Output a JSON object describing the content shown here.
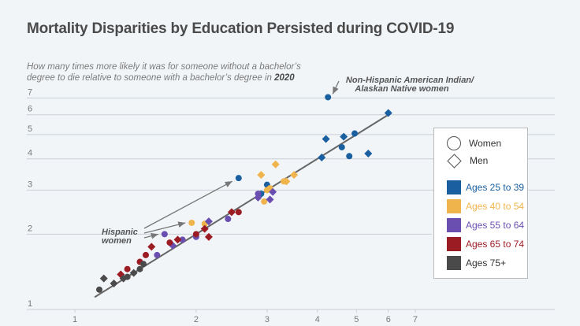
{
  "chart_data": {
    "type": "scatter",
    "title": "Mortality Disparities by Education Persisted during COVID-19",
    "subtitle_text": "How many times more likely it was for someone without a bachelor’s degree to die relative to someone with a bachelor’s degree in ",
    "subtitle_bold": "2020",
    "xlabel": "",
    "ylabel": "",
    "x_scale": "log",
    "y_scale": "log",
    "xlim": [
      1,
      7.5
    ],
    "ylim": [
      1,
      7
    ],
    "x_ticks": [
      "1",
      "2",
      "3",
      "4",
      "5",
      "6",
      "7"
    ],
    "y_ticks": [
      "1",
      "2",
      "3",
      "4",
      "5",
      "6",
      "7"
    ],
    "grid": "horizontal",
    "legend_position": "right",
    "legend": {
      "shapes": [
        {
          "shape": "circle",
          "label": "Women"
        },
        {
          "shape": "diamond",
          "label": "Men"
        }
      ],
      "groups": [
        {
          "key": "a25",
          "label": "Ages 25 to 39",
          "color": "#1a5fa0"
        },
        {
          "key": "a40",
          "label": "Ages 40 to 54",
          "color": "#f0b44c"
        },
        {
          "key": "a55",
          "label": "Ages 55 to 64",
          "color": "#6a4fb0"
        },
        {
          "key": "a65",
          "label": "Ages 65 to 74",
          "color": "#9c1c24"
        },
        {
          "key": "a75",
          "label": "Ages 75+",
          "color": "#4a4a4a"
        }
      ]
    },
    "trend_line": {
      "from": [
        1.12,
        1.12
      ],
      "to": [
        6.0,
        6.0
      ]
    },
    "annotations": [
      {
        "text_lines": [
          "Non-Hispanic American Indian/",
          "Alaskan Native women"
        ],
        "points_to": [
          4.25,
          7.05
        ]
      },
      {
        "text_lines": [
          "Hispanic",
          "women"
        ],
        "points_to": [
          [
            2.55,
            3.35
          ],
          [
            1.95,
            2.22
          ],
          [
            1.67,
            2.0
          ]
        ]
      }
    ],
    "series": [
      {
        "group": "a25",
        "shape": "circle",
        "points": [
          [
            4.25,
            7.05
          ],
          [
            2.55,
            3.35
          ],
          [
            2.9,
            2.9
          ],
          [
            3.0,
            3.15
          ],
          [
            4.6,
            4.45
          ],
          [
            4.95,
            5.05
          ],
          [
            4.8,
            4.1
          ]
        ]
      },
      {
        "group": "a25",
        "shape": "diamond",
        "points": [
          [
            6.0,
            6.1
          ],
          [
            4.2,
            4.8
          ],
          [
            4.65,
            4.9
          ],
          [
            4.1,
            4.05
          ],
          [
            5.35,
            4.2
          ]
        ]
      },
      {
        "group": "a40",
        "shape": "circle",
        "points": [
          [
            1.95,
            2.22
          ],
          [
            2.1,
            2.2
          ],
          [
            3.0,
            3.0
          ],
          [
            3.3,
            3.25
          ],
          [
            2.95,
            2.7
          ],
          [
            3.05,
            3.05
          ]
        ]
      },
      {
        "group": "a40",
        "shape": "diamond",
        "points": [
          [
            2.9,
            3.45
          ],
          [
            3.15,
            3.8
          ],
          [
            3.5,
            3.45
          ],
          [
            3.35,
            3.25
          ]
        ]
      },
      {
        "group": "a55",
        "shape": "circle",
        "points": [
          [
            1.67,
            2.0
          ],
          [
            1.6,
            1.65
          ],
          [
            1.85,
            1.9
          ],
          [
            2.0,
            1.95
          ],
          [
            2.4,
            2.3
          ],
          [
            2.85,
            2.9
          ]
        ]
      },
      {
        "group": "a55",
        "shape": "diamond",
        "points": [
          [
            1.75,
            1.8
          ],
          [
            2.15,
            2.25
          ],
          [
            2.85,
            2.8
          ],
          [
            3.05,
            2.75
          ],
          [
            3.1,
            2.95
          ]
        ]
      },
      {
        "group": "a65",
        "shape": "circle",
        "points": [
          [
            1.5,
            1.65
          ],
          [
            1.35,
            1.45
          ],
          [
            1.45,
            1.55
          ],
          [
            1.72,
            1.85
          ],
          [
            2.0,
            2.0
          ],
          [
            2.55,
            2.45
          ]
        ]
      },
      {
        "group": "a65",
        "shape": "diamond",
        "points": [
          [
            1.3,
            1.38
          ],
          [
            1.55,
            1.78
          ],
          [
            1.8,
            1.9
          ],
          [
            2.1,
            2.1
          ],
          [
            2.15,
            1.95
          ],
          [
            2.45,
            2.45
          ]
        ]
      },
      {
        "group": "a75",
        "shape": "circle",
        "points": [
          [
            1.15,
            1.2
          ],
          [
            1.35,
            1.35
          ],
          [
            1.45,
            1.45
          ],
          [
            1.48,
            1.52
          ]
        ]
      },
      {
        "group": "a75",
        "shape": "diamond",
        "points": [
          [
            1.18,
            1.33
          ],
          [
            1.25,
            1.27
          ],
          [
            1.32,
            1.33
          ],
          [
            1.4,
            1.4
          ]
        ]
      }
    ]
  }
}
